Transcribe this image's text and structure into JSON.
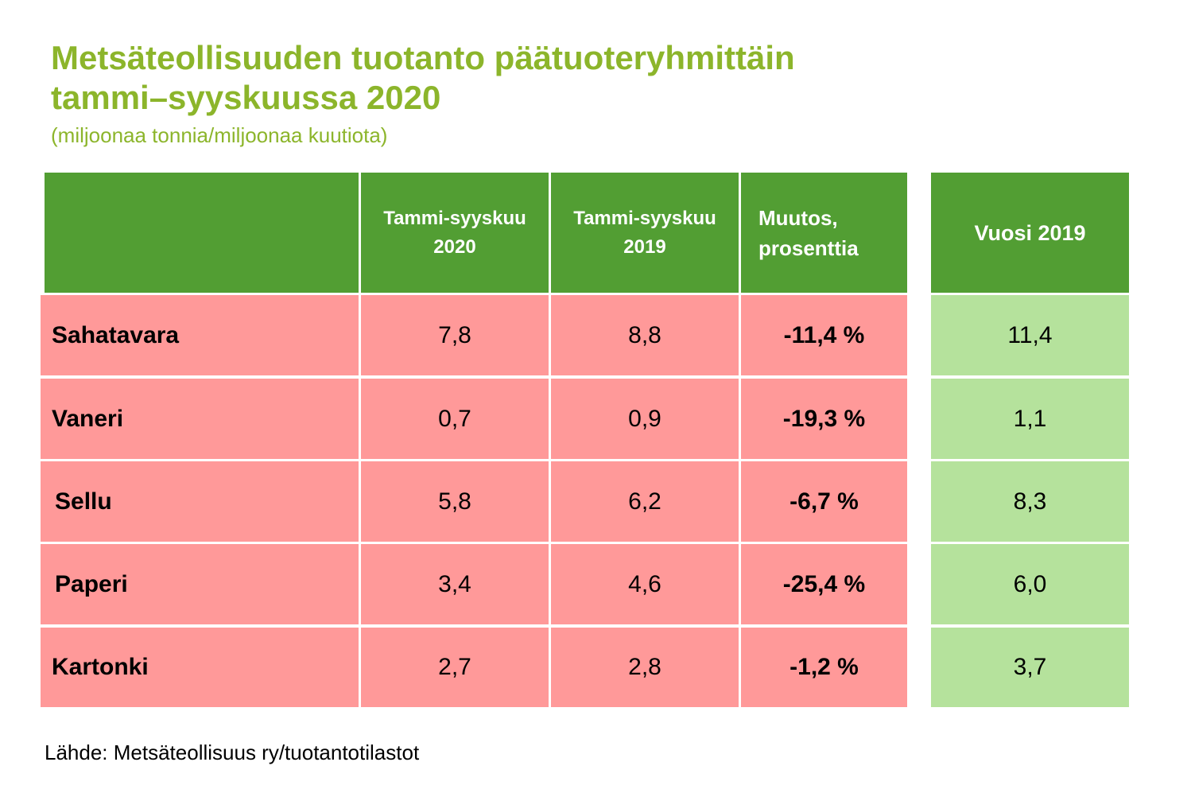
{
  "title_line1": "Metsäteollisuuden tuotanto päätuoteryhmittäin",
  "title_line2": "tammi–syyskuussa 2020",
  "subtitle": "(miljoonaa tonnia/miljoonaa kuutiota)",
  "colors": {
    "title": "#8cb52b",
    "header": "#529e33",
    "row_pink": "#ff9999",
    "row_green": "#b5e29c"
  },
  "chart_data": {
    "type": "table",
    "columns": [
      "",
      "Tammi-syyskuu 2020",
      "Tammi-syyskuu 2019",
      "Muutos, prosenttia",
      "Vuosi 2019"
    ],
    "header": {
      "col1_line1": "Tammi-syyskuu",
      "col1_line2": "2020",
      "col2_line1": "Tammi-syyskuu",
      "col2_line2": "2019",
      "col3_line1": "Muutos,",
      "col3_line2": "prosenttia",
      "col4": "Vuosi 2019"
    },
    "rows": [
      {
        "name": "Sahatavara",
        "v2020": "7,8",
        "v2019": "8,8",
        "change": "-11,4 %",
        "year2019": "11,4"
      },
      {
        "name": "Vaneri",
        "v2020": "0,7",
        "v2019": "0,9",
        "change": "-19,3 %",
        "year2019": "1,1"
      },
      {
        "name": "Sellu",
        "v2020": "5,8",
        "v2019": "6,2",
        "change": "-6,7 %",
        "year2019": "8,3"
      },
      {
        "name": "Paperi",
        "v2020": "3,4",
        "v2019": "4,6",
        "change": "-25,4 %",
        "year2019": "6,0"
      },
      {
        "name": "Kartonki",
        "v2020": "2,7",
        "v2019": "2,8",
        "change": "-1,2 %",
        "year2019": "3,7"
      }
    ]
  },
  "source": "Lähde: Metsäteollisuus ry/tuotantotilastot"
}
